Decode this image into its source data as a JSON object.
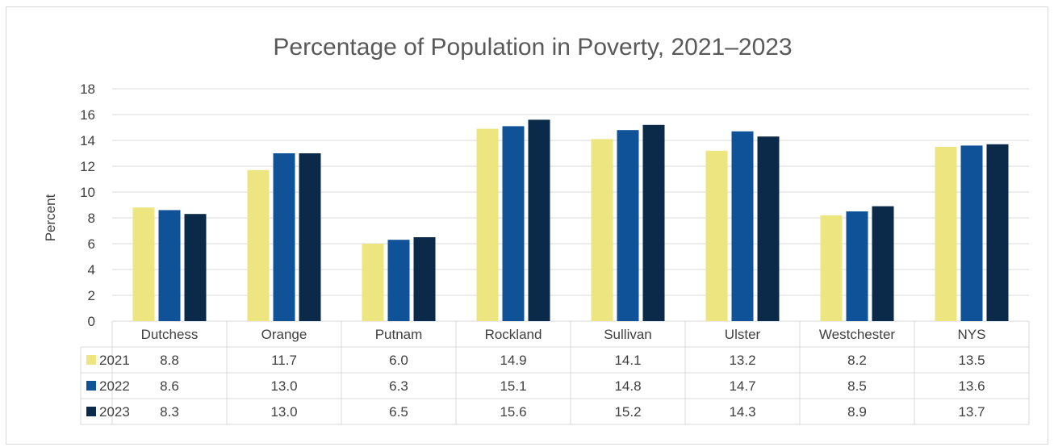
{
  "chart_data": {
    "type": "bar",
    "title": "Percentage of Population in Poverty, 2021–2023",
    "ylabel": "Percent",
    "xlabel": "",
    "ylim": [
      0,
      18
    ],
    "yticks": [
      0,
      2,
      4,
      6,
      8,
      10,
      12,
      14,
      16,
      18
    ],
    "grid": true,
    "legend": "data-table-left",
    "categories": [
      "Dutchess",
      "Orange",
      "Putnam",
      "Rockland",
      "Sullivan",
      "Ulster",
      "Westchester",
      "NYS"
    ],
    "series": [
      {
        "name": "2021",
        "color": "#ede580",
        "values": [
          8.8,
          11.7,
          6.0,
          14.9,
          14.1,
          13.2,
          8.2,
          13.5
        ],
        "labels": [
          "8.8",
          "11.7",
          "6.0",
          "14.9",
          "14.1",
          "13.2",
          "8.2",
          "13.5"
        ]
      },
      {
        "name": "2022",
        "color": "#0f5298",
        "values": [
          8.6,
          13.0,
          6.3,
          15.1,
          14.8,
          14.7,
          8.5,
          13.6
        ],
        "labels": [
          "8.6",
          "13.0",
          "6.3",
          "15.1",
          "14.8",
          "14.7",
          "8.5",
          "13.6"
        ]
      },
      {
        "name": "2023",
        "color": "#0b2a4a",
        "values": [
          8.3,
          13.0,
          6.5,
          15.6,
          15.2,
          14.3,
          8.9,
          13.7
        ],
        "labels": [
          "8.3",
          "13.0",
          "6.5",
          "15.6",
          "15.2",
          "14.3",
          "8.9",
          "13.7"
        ]
      }
    ]
  }
}
